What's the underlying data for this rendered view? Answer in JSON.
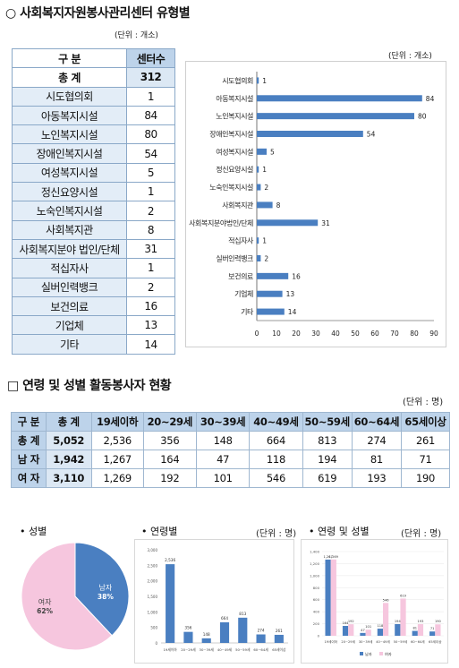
{
  "section1": {
    "title": "○ 사회복지자원봉사관리센터 유형별",
    "table_unit": "(단위 : 개소)",
    "chart_unit": "(단위 : 개소)",
    "headers": [
      "구 분",
      "센터수"
    ],
    "total": {
      "label": "총 계",
      "value": "312"
    },
    "rows": [
      {
        "label": "시도협의회",
        "value": "1"
      },
      {
        "label": "아동복지시설",
        "value": "84"
      },
      {
        "label": "노인복지시설",
        "value": "80"
      },
      {
        "label": "장애인복지시설",
        "value": "54"
      },
      {
        "label": "여성복지시설",
        "value": "5"
      },
      {
        "label": "정신요양시설",
        "value": "1"
      },
      {
        "label": "노숙인복지시설",
        "value": "2"
      },
      {
        "label": "사회복지관",
        "value": "8"
      },
      {
        "label": "사회복지분야 법인/단체",
        "value": "31"
      },
      {
        "label": "적십자사",
        "value": "1"
      },
      {
        "label": "실버인력뱅크",
        "value": "2"
      },
      {
        "label": "보건의료",
        "value": "16"
      },
      {
        "label": "기업체",
        "value": "13"
      },
      {
        "label": "기타",
        "value": "14"
      }
    ]
  },
  "section2": {
    "title": "□ 연령 및 성별 활동봉사자 현황",
    "unit": "(단위 : 명)",
    "headers": [
      "구 분",
      "총 계",
      "19세이하",
      "20~29세",
      "30~39세",
      "40~49세",
      "50~59세",
      "60~64세",
      "65세이상"
    ],
    "rows": [
      {
        "label": "총 계",
        "cells": [
          "5,052",
          "2,536",
          "356",
          "148",
          "664",
          "813",
          "274",
          "261"
        ]
      },
      {
        "label": "남 자",
        "cells": [
          "1,942",
          "1,267",
          "164",
          "47",
          "118",
          "194",
          "81",
          "71"
        ]
      },
      {
        "label": "여 자",
        "cells": [
          "3,110",
          "1,269",
          "192",
          "101",
          "546",
          "619",
          "193",
          "190"
        ]
      }
    ]
  },
  "section3": {
    "gender_title": "• 성별",
    "age_title": "• 연령별",
    "age_unit": "(단위 : 명)",
    "agegender_title": "• 연령 및 성별",
    "agegender_unit": "(단위 : 명)"
  },
  "chart_data": [
    {
      "type": "bar",
      "orientation": "horizontal",
      "categories": [
        "시도협의회",
        "아동복지시설",
        "노인복지시설",
        "장애인복지시설",
        "여성복지시설",
        "정신요양시설",
        "노숙인복지시설",
        "사회복지관",
        "사회복지분야법인/단체",
        "적십자사",
        "실버인력뱅크",
        "보건의료",
        "기업체",
        "기타"
      ],
      "values": [
        1,
        84,
        80,
        54,
        5,
        1,
        2,
        8,
        31,
        1,
        2,
        16,
        13,
        14
      ],
      "xlim": [
        0,
        90
      ],
      "xticks": [
        0,
        10,
        20,
        30,
        40,
        50,
        60,
        70,
        80,
        90
      ],
      "color": "#4a7fc1"
    },
    {
      "type": "pie",
      "labels": [
        "남자",
        "여자"
      ],
      "values": [
        38,
        62
      ],
      "value_labels": [
        "38%",
        "62%"
      ],
      "colors": [
        "#4a7fc1",
        "#f6c6de"
      ]
    },
    {
      "type": "bar",
      "categories": [
        "19세이하",
        "20~29세",
        "30~39세",
        "40~49세",
        "50~59세",
        "60~64세",
        "65세이상"
      ],
      "values": [
        2536,
        356,
        148,
        664,
        813,
        274,
        261
      ],
      "ylim": [
        0,
        3000
      ],
      "yticks": [
        0,
        500,
        1000,
        1500,
        2000,
        2500,
        3000
      ],
      "color": "#4a7fc1"
    },
    {
      "type": "bar",
      "categories": [
        "19세이하",
        "20~29세",
        "30~39세",
        "40~49세",
        "50~59세",
        "60~64세",
        "65세이상"
      ],
      "series": [
        {
          "name": "남자",
          "values": [
            1267,
            164,
            47,
            118,
            194,
            81,
            71
          ]
        },
        {
          "name": "여자",
          "values": [
            1269,
            192,
            101,
            546,
            619,
            193,
            190
          ]
        }
      ],
      "ylim": [
        0,
        1400
      ],
      "yticks": [
        0,
        200,
        400,
        600,
        800,
        1000,
        1200,
        1400
      ],
      "colors": [
        "#4a7fc1",
        "#f6c6de"
      ]
    }
  ]
}
